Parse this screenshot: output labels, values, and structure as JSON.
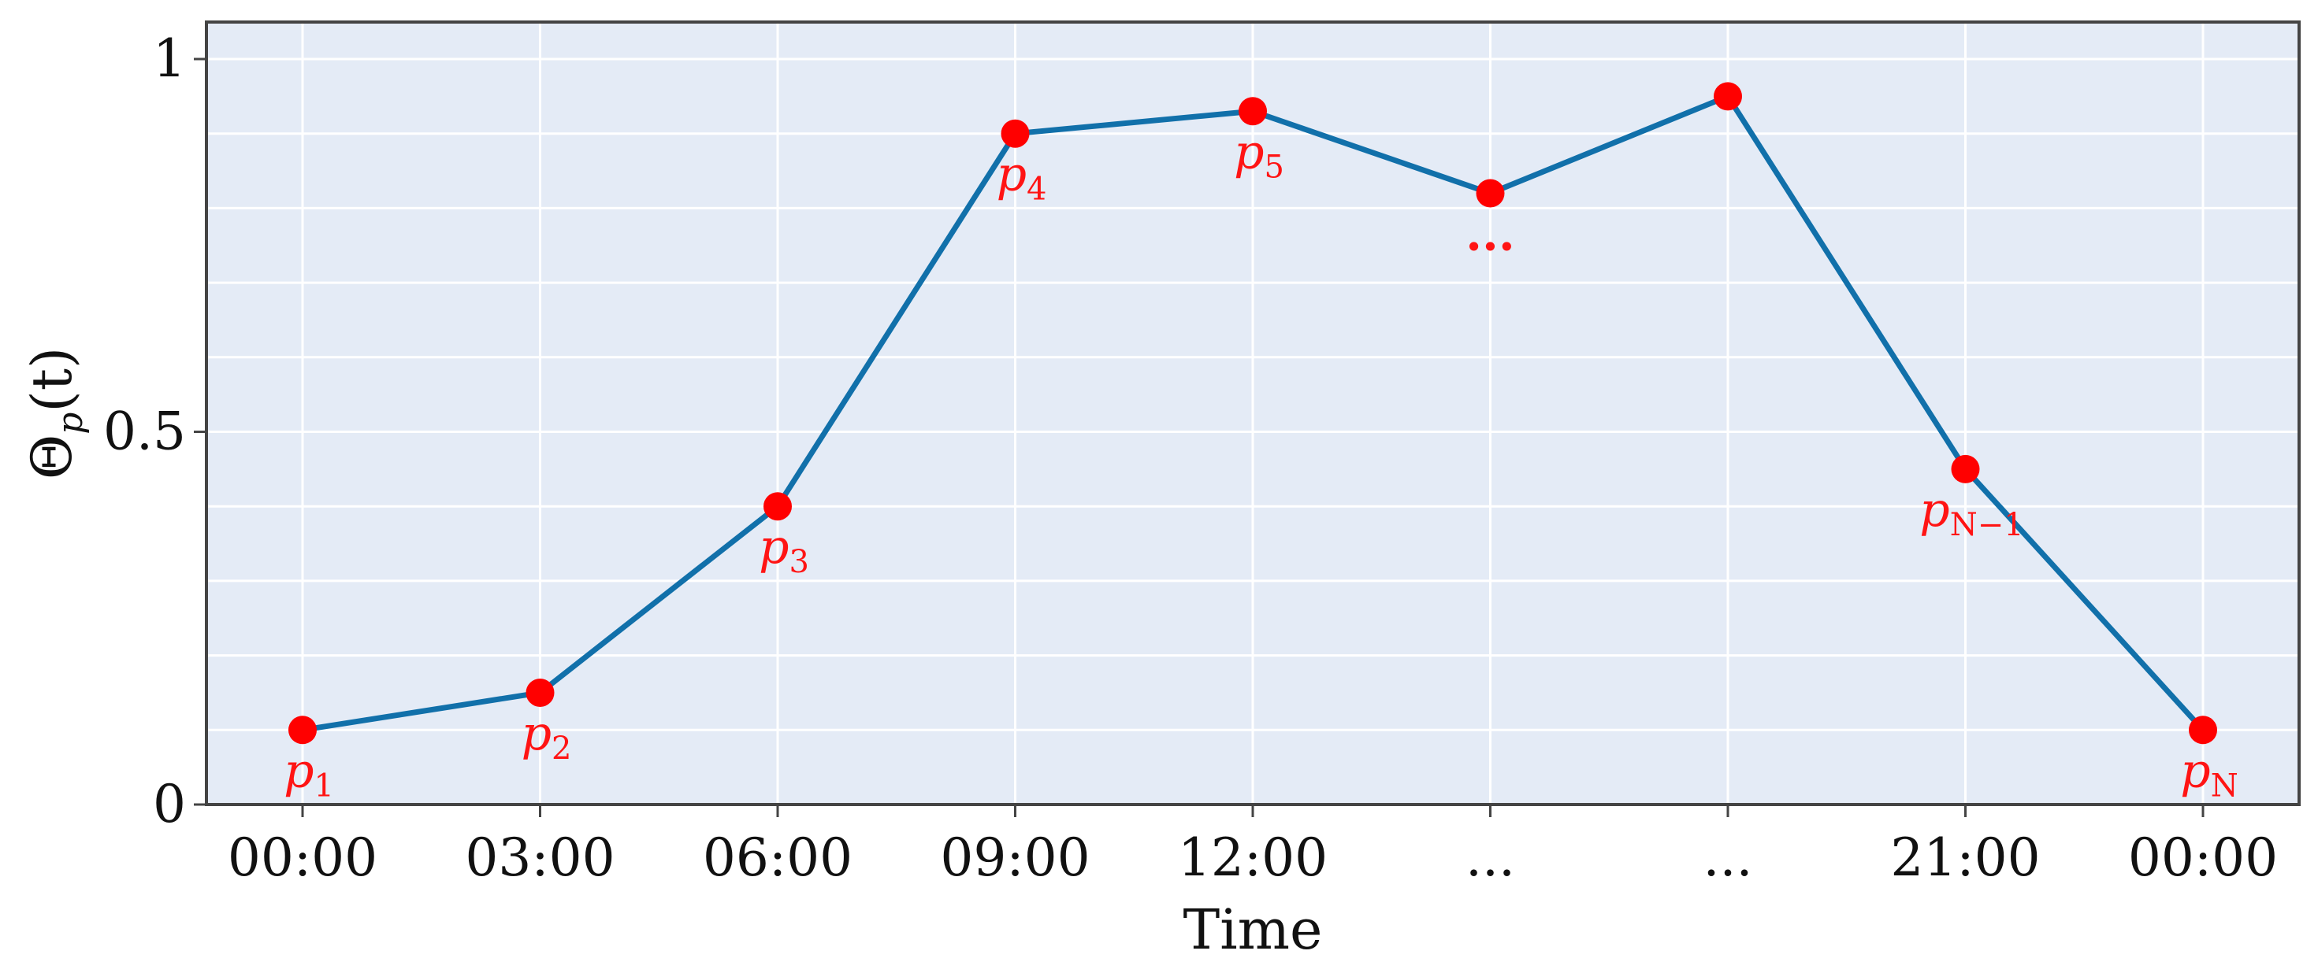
{
  "chart_data": {
    "type": "line",
    "title": "",
    "xlabel": "Time",
    "ylabel_main": "Θ",
    "ylabel_sub": "p",
    "ylabel_tail": "(t)",
    "categories": [
      "00:00",
      "03:00",
      "06:00",
      "09:00",
      "12:00",
      "...",
      "...",
      "21:00",
      "00:00"
    ],
    "ylim": [
      0,
      1.05
    ],
    "yticks": [
      {
        "value": 0,
        "label": "0"
      },
      {
        "value": 0.5,
        "label": "0.5"
      },
      {
        "value": 1,
        "label": "1"
      }
    ],
    "ygrid_minor": [
      0.1,
      0.2,
      0.3,
      0.4,
      0.6,
      0.7,
      0.8,
      0.9
    ],
    "grid": true,
    "series": [
      {
        "values": [
          0.1,
          0.15,
          0.4,
          0.9,
          0.93,
          0.82,
          0.95,
          0.45,
          0.1
        ],
        "line_color": "#1170aa",
        "marker_color": "#ff0000"
      }
    ],
    "point_labels": [
      {
        "index": 0,
        "main": "p",
        "sub": "1"
      },
      {
        "index": 1,
        "main": "p",
        "sub": "2"
      },
      {
        "index": 2,
        "main": "p",
        "sub": "3"
      },
      {
        "index": 3,
        "main": "p",
        "sub": "4"
      },
      {
        "index": 4,
        "main": "p",
        "sub": "5"
      },
      {
        "index": 5,
        "main": "...",
        "sub": ""
      },
      {
        "index": 7,
        "main": "p",
        "sub": "N−1"
      },
      {
        "index": 8,
        "main": "p",
        "sub": "N"
      }
    ],
    "colors": {
      "plot_background": "#e4ebf6",
      "grid": "#ffffff",
      "axis": "#444444",
      "label": "#ff1414"
    }
  }
}
